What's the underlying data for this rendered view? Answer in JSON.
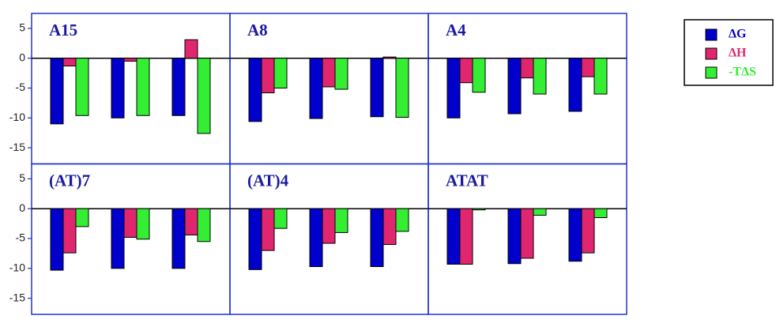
{
  "legend": [
    {
      "name": "ΔG",
      "color": "#0000cc"
    },
    {
      "name": "ΔH",
      "color": "#e0266e"
    },
    {
      "name": "-TΔS",
      "color": "#33ee33"
    }
  ],
  "chart_data": [
    {
      "type": "bar",
      "title": "A15",
      "categories": [
        null,
        null,
        null
      ],
      "ylim": [
        -17.7,
        7.5
      ],
      "yticks": [
        5,
        0,
        -5,
        -10,
        -15
      ],
      "series": [
        {
          "values": [
            -11,
            -10,
            -9.6
          ]
        },
        {
          "values": [
            -1.3,
            -0.5,
            3.1
          ]
        },
        {
          "values": [
            -9.6,
            -9.6,
            -12.6
          ]
        }
      ]
    },
    {
      "type": "bar",
      "title": "A8",
      "categories": [
        null,
        null,
        null
      ],
      "ylim": [
        -17.7,
        7.5
      ],
      "series": [
        {
          "values": [
            -10.6,
            -10.1,
            -9.8
          ]
        },
        {
          "values": [
            -5.8,
            -4.8,
            0.2
          ]
        },
        {
          "values": [
            -5,
            -5.2,
            -9.9
          ]
        }
      ]
    },
    {
      "type": "bar",
      "title": "A4",
      "categories": [
        null,
        null,
        null
      ],
      "ylim": [
        -17.7,
        7.5
      ],
      "series": [
        {
          "values": [
            -10,
            -9.3,
            -8.9
          ]
        },
        {
          "values": [
            -4.1,
            -3.3,
            -3.1
          ]
        },
        {
          "values": [
            -5.7,
            -6,
            -6
          ]
        }
      ]
    },
    {
      "type": "bar",
      "title": "(AT)7",
      "categories": [
        null,
        null,
        null
      ],
      "ylim": [
        -17.7,
        7.5
      ],
      "yticks": [
        5,
        0,
        -5,
        -10,
        -15
      ],
      "series": [
        {
          "values": [
            -10.3,
            -10,
            -10
          ]
        },
        {
          "values": [
            -7.4,
            -4.8,
            -4.4
          ]
        },
        {
          "values": [
            -3,
            -5.1,
            -5.5
          ]
        }
      ]
    },
    {
      "type": "bar",
      "title": "(AT)4",
      "categories": [
        null,
        null,
        null
      ],
      "ylim": [
        -17.7,
        7.5
      ],
      "series": [
        {
          "values": [
            -10.2,
            -9.7,
            -9.7
          ]
        },
        {
          "values": [
            -7,
            -5.8,
            -6
          ]
        },
        {
          "values": [
            -3.3,
            -4,
            -3.8
          ]
        }
      ]
    },
    {
      "type": "bar",
      "title": "ATAT",
      "categories": [
        null,
        null,
        null
      ],
      "ylim": [
        -17.7,
        7.5
      ],
      "series": [
        {
          "values": [
            -9.3,
            -9.2,
            -8.8
          ]
        },
        {
          "values": [
            -9.3,
            -8.3,
            -7.4
          ]
        },
        {
          "values": [
            -0.2,
            -1.1,
            -1.5
          ]
        }
      ]
    }
  ]
}
